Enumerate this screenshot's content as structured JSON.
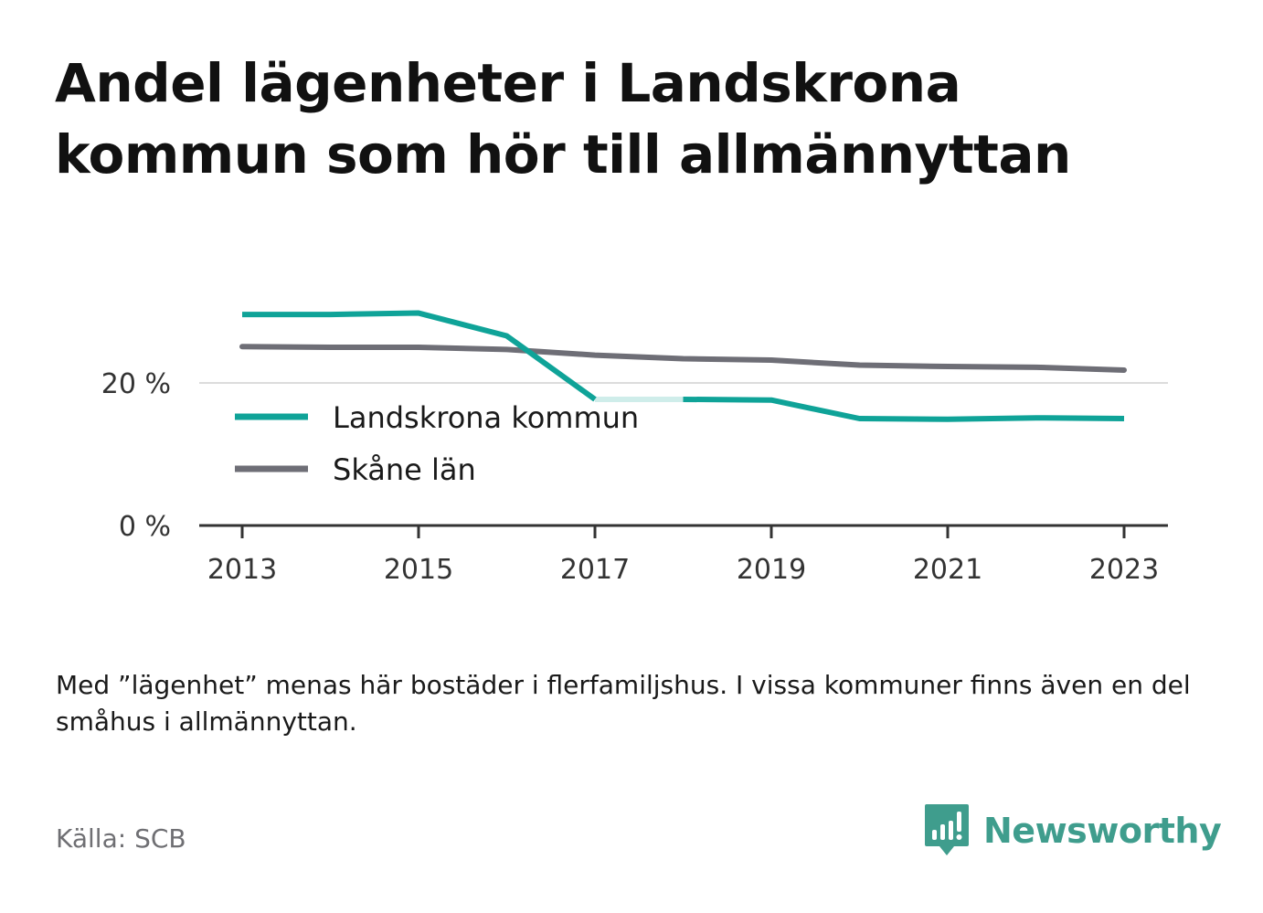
{
  "title": "Andel lägenheter i Landskrona kommun som hör till allmännyttan",
  "note": "Med ”lägenhet” menas här bostäder i flerfamiljshus. I vissa kommuner finns även en del småhus i allmännyttan.",
  "source": "Källa: SCB",
  "brand": "Newsworthy",
  "colors": {
    "landskrona": "#0fa398",
    "skane": "#6e6e76",
    "grid": "#dcdcdc",
    "axis": "#333333",
    "brand": "#3f9d8d"
  },
  "chart_data": {
    "type": "line",
    "x": [
      2013,
      2014,
      2015,
      2016,
      2017,
      2018,
      2019,
      2020,
      2021,
      2022,
      2023
    ],
    "x_ticks": [
      "2013",
      "2015",
      "2017",
      "2019",
      "2021",
      "2023"
    ],
    "y_ticks": [
      "0 %",
      "20 %"
    ],
    "ylim": [
      0,
      35
    ],
    "series": [
      {
        "name": "Landskrona kommun",
        "key": "landskrona",
        "values": [
          29.6,
          29.6,
          29.8,
          26.6,
          17.7,
          17.7,
          17.6,
          15.0,
          14.9,
          15.1,
          15.0
        ],
        "faded_segment": [
          2017,
          2018
        ]
      },
      {
        "name": "Skåne län",
        "key": "skane",
        "values": [
          25.1,
          25.0,
          25.0,
          24.7,
          23.9,
          23.4,
          23.2,
          22.5,
          22.3,
          22.2,
          21.8
        ]
      }
    ],
    "legend_position": "inside-middle-left",
    "grid": true
  }
}
